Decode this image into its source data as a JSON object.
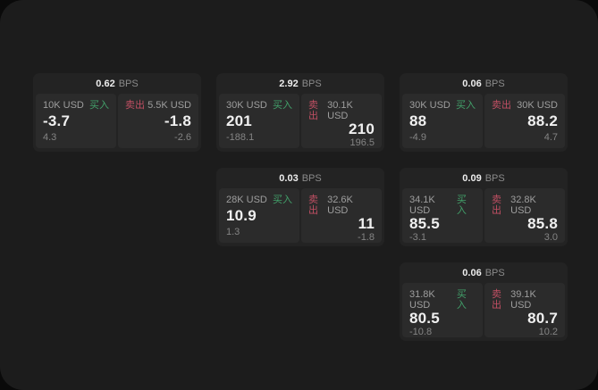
{
  "labels": {
    "bps_unit": "BPS",
    "buy": "买入",
    "sell": "卖出"
  },
  "colors": {
    "buy_green": "#42a06a",
    "sell_red": "#c04f63",
    "surface": "#1c1c1c",
    "card": "#232323",
    "panel": "#2b2b2b"
  },
  "cards": [
    {
      "bps": "0.62",
      "buy": {
        "amount": "10K USD",
        "price": "-3.7",
        "delta": "4.3"
      },
      "sell": {
        "amount": "5.5K USD",
        "price": "-1.8",
        "delta": "-2.6"
      }
    },
    {
      "bps": "2.92",
      "buy": {
        "amount": "30K USD",
        "price": "201",
        "delta": "-188.1"
      },
      "sell": {
        "amount": "30.1K USD",
        "price": "210",
        "delta": "196.5"
      }
    },
    {
      "bps": "0.06",
      "buy": {
        "amount": "30K USD",
        "price": "88",
        "delta": "-4.9"
      },
      "sell": {
        "amount": "30K USD",
        "price": "88.2",
        "delta": "4.7"
      }
    },
    {
      "bps": "0.03",
      "buy": {
        "amount": "28K USD",
        "price": "10.9",
        "delta": "1.3"
      },
      "sell": {
        "amount": "32.6K USD",
        "price": "11",
        "delta": "-1.8"
      }
    },
    {
      "bps": "0.09",
      "buy": {
        "amount": "34.1K USD",
        "price": "85.5",
        "delta": "-3.1"
      },
      "sell": {
        "amount": "32.8K USD",
        "price": "85.8",
        "delta": "3.0"
      }
    },
    {
      "bps": "0.06",
      "buy": {
        "amount": "31.8K USD",
        "price": "80.5",
        "delta": "-10.8"
      },
      "sell": {
        "amount": "39.1K USD",
        "price": "80.7",
        "delta": "10.2"
      }
    }
  ]
}
